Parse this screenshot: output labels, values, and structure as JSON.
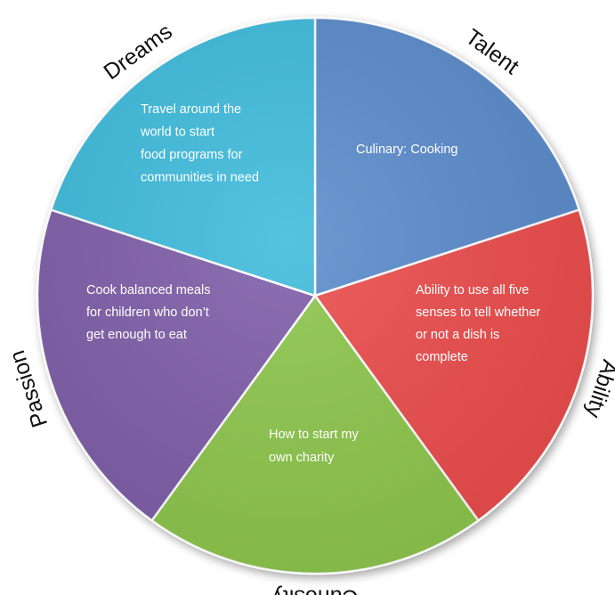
{
  "segments": [
    {
      "label": "Talent",
      "color": "#5a8bcb",
      "text": [
        "Culinary: Cooking"
      ]
    },
    {
      "label": "Ability",
      "color": "#ec4b4b",
      "text": [
        "Ability to use all five",
        "senses to tell whether",
        "or not a dish is",
        "complete"
      ]
    },
    {
      "label": "Curiosity",
      "color": "#8dc64c",
      "text": [
        "How to start my",
        "own charity"
      ]
    },
    {
      "label": "Passion",
      "color": "#7e5da8",
      "text": [
        "Cook balanced meals",
        "for children who don’t",
        "get enough to eat"
      ]
    },
    {
      "label": "Dreams",
      "color": "#3ebbdc",
      "text": [
        "Travel around the",
        "world to start",
        "food programs for",
        "communities in need"
      ]
    }
  ]
}
